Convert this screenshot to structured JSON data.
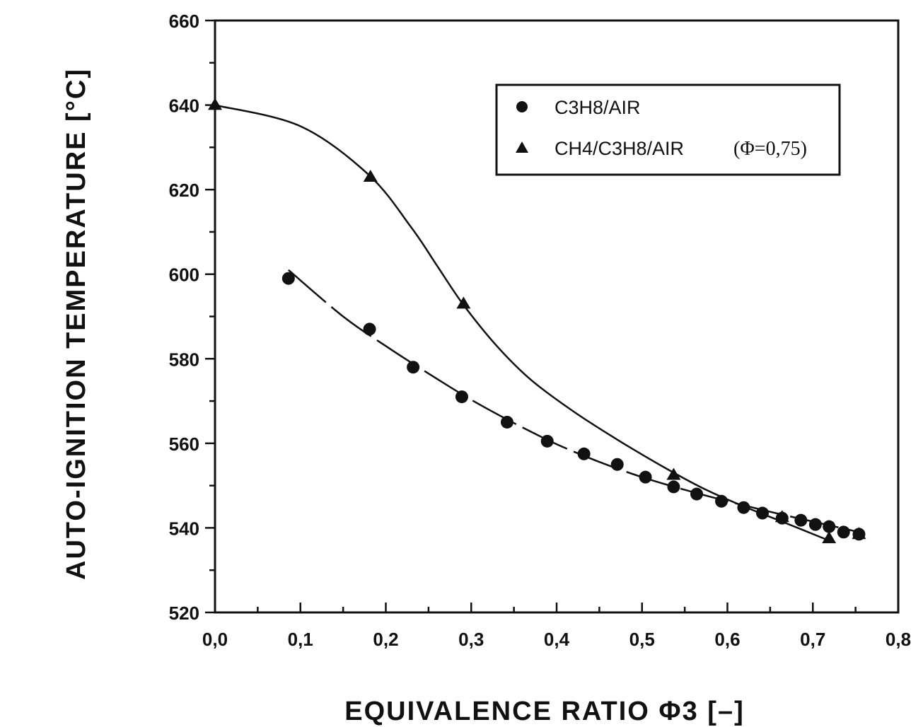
{
  "chart_data": {
    "type": "scatter",
    "xlabel": "EQUIVALENCE RATIO Φ3 [–]",
    "ylabel": "AUTO-IGNITION TEMPERATURE [°C]",
    "xlim": [
      0.0,
      0.8
    ],
    "ylim": [
      520,
      660
    ],
    "x_ticks": [
      "0,0",
      "0,1",
      "0,2",
      "0,3",
      "0,4",
      "0,5",
      "0,6",
      "0,7",
      "0,8"
    ],
    "y_ticks": [
      "520",
      "540",
      "560",
      "580",
      "600",
      "620",
      "640",
      "660"
    ],
    "legend_position": "top-right",
    "series": [
      {
        "name": "C3H8/AIR",
        "marker": "circle",
        "x": [
          0.086,
          0.181,
          0.232,
          0.289,
          0.342,
          0.389,
          0.432,
          0.471,
          0.504,
          0.537,
          0.564,
          0.593,
          0.619,
          0.641,
          0.664,
          0.686,
          0.703,
          0.719,
          0.736,
          0.754
        ],
        "y": [
          599,
          587,
          578,
          571,
          565,
          560.5,
          557.5,
          555,
          552,
          549.7,
          548,
          546.3,
          544.8,
          543.5,
          542.3,
          541.8,
          540.8,
          540.3,
          539,
          538.5
        ]
      },
      {
        "name": "CH4/C3H8/AIR",
        "note": "(Φ=0,75)",
        "marker": "triangle",
        "x": [
          0.0,
          0.182,
          0.291,
          0.537,
          0.664,
          0.719,
          0.754
        ],
        "y": [
          640,
          623,
          593,
          552.5,
          542.5,
          537.5,
          538.5
        ]
      }
    ],
    "fit_curves": [
      {
        "for": "C3H8/AIR",
        "style": "dashed",
        "x": [
          0.086,
          0.15,
          0.2,
          0.25,
          0.3,
          0.35,
          0.4,
          0.45,
          0.5,
          0.55,
          0.6,
          0.65,
          0.7,
          0.754
        ],
        "y": [
          601,
          590,
          583,
          576.5,
          570.3,
          564.8,
          559.8,
          555.6,
          552,
          549,
          546.3,
          543.8,
          541.5,
          539
        ]
      },
      {
        "for": "CH4/C3H8/AIR",
        "style": "solid",
        "x": [
          0.0,
          0.1,
          0.18,
          0.23,
          0.26,
          0.29,
          0.33,
          0.37,
          0.42,
          0.47,
          0.52,
          0.57,
          0.62,
          0.67,
          0.719
        ],
        "y": [
          640,
          635,
          623.5,
          611,
          602,
          593,
          583,
          575,
          567.5,
          561,
          555,
          549.5,
          545,
          541,
          537
        ]
      }
    ]
  }
}
